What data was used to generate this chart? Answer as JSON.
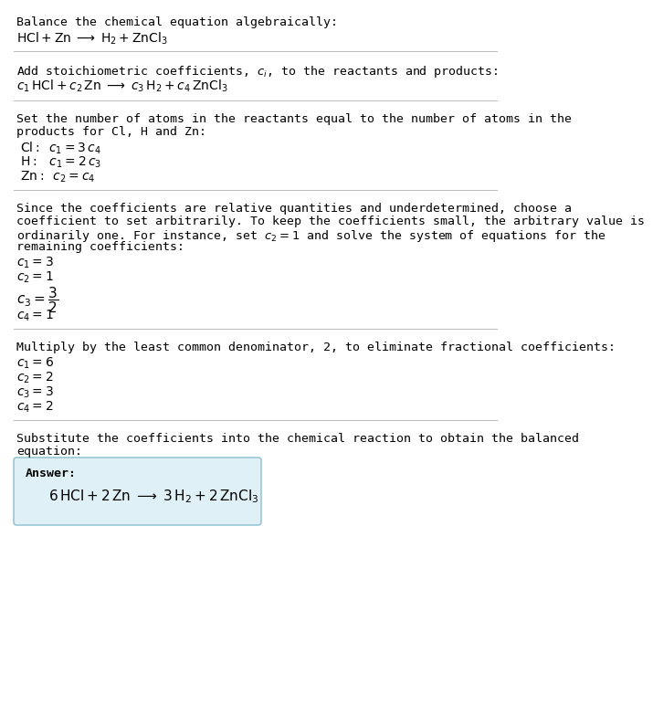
{
  "bg_color": "#ffffff",
  "text_color": "#000000",
  "section1_title": "Balance the chemical equation algebraically:",
  "section2_title": "Add stoichiometric coefficients, $c_i$, to the reactants and products:",
  "section3_title_1": "Set the number of atoms in the reactants equal to the number of atoms in the",
  "section3_title_2": "products for Cl, H and Zn:",
  "section4_title_1": "Since the coefficients are relative quantities and underdetermined, choose a",
  "section4_title_2": "coefficient to set arbitrarily. To keep the coefficients small, the arbitrary value is",
  "section4_title_3": "ordinarily one. For instance, set $c_2 = 1$ and solve the system of equations for the",
  "section4_title_4": "remaining coefficients:",
  "section5_title": "Multiply by the least common denominator, 2, to eliminate fractional coefficients:",
  "section6_title_1": "Substitute the coefficients into the chemical reaction to obtain the balanced",
  "section6_title_2": "equation:",
  "answer_label": "Answer:",
  "answer_box_color": "#dff0f7",
  "answer_box_edge": "#8bbfcf"
}
